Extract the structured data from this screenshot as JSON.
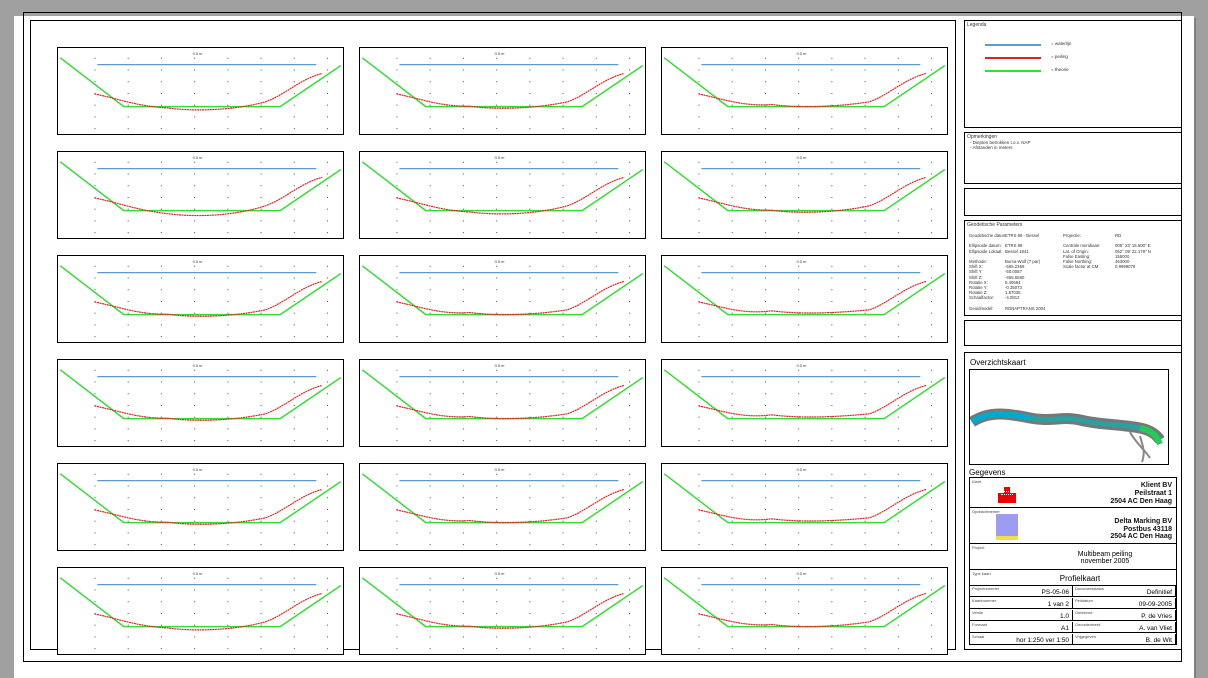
{
  "panels": [
    {
      "label": "0.0 m",
      "dip": 0.72
    },
    {
      "label": "0.0 m",
      "dip": 0.7
    },
    {
      "label": "0.0 m",
      "dip": 0.68
    },
    {
      "label": "0.0 m",
      "dip": 0.74
    },
    {
      "label": "0.0 m",
      "dip": 0.72
    },
    {
      "label": "0.0 m",
      "dip": 0.7
    },
    {
      "label": "0.0 m",
      "dip": 0.7
    },
    {
      "label": "0.0 m",
      "dip": 0.68
    },
    {
      "label": "0.0 m",
      "dip": 0.66
    },
    {
      "label": "0.0 m",
      "dip": 0.7
    },
    {
      "label": "0.0 m",
      "dip": 0.68
    },
    {
      "label": "0.0 m",
      "dip": 0.66
    },
    {
      "label": "0.0 m",
      "dip": 0.7
    },
    {
      "label": "0.0 m",
      "dip": 0.68
    },
    {
      "label": "0.0 m",
      "dip": 0.66
    },
    {
      "label": "0.0 m",
      "dip": 0.72
    },
    {
      "label": "0.0 m",
      "dip": 0.7
    },
    {
      "label": "0.0 m",
      "dip": 0.68
    }
  ],
  "legend": {
    "title": "Legenda",
    "items": [
      {
        "label": "= waterlijn",
        "color": "#5b9bd5"
      },
      {
        "label": "= peiling",
        "color": "#e32020"
      },
      {
        "label": "= theorie",
        "color": "#33dd33"
      }
    ]
  },
  "opmerkingen": {
    "title": "Opmerkingen",
    "lines": [
      "- Diepten betrokken t.o.v. NAP",
      "- Afstanden in meters"
    ]
  },
  "geodesie": {
    "title": "Geodetische Parameters",
    "rows": [
      [
        "Geodetische datum:",
        "ETRS 89 - Bessel",
        "Projectie:",
        "RD"
      ],
      [
        "",
        "",
        "",
        ""
      ],
      [
        "Ellipsoide datum:",
        "ETRS 89",
        "Centrale meridiaan:",
        "005° 23' 15.500\" E"
      ],
      [
        "Ellipsoide Lokaal:",
        "Bessel 1841",
        "Lat. of Origin:",
        "052° 09' 22.178\" N"
      ],
      [
        "",
        "",
        "False Easting:",
        "155000"
      ],
      [
        "Methode:",
        "Bursa-Wolf (7 par)",
        "False Northing:",
        "463000"
      ],
      [
        "Shift X:",
        "-565.2369",
        "Scale factor at CM:",
        "0.9999079"
      ],
      [
        "Shift Y:",
        "-50.0087",
        "",
        ""
      ],
      [
        "Shift Z:",
        "-465.6580",
        "",
        ""
      ],
      [
        "Rotatie X:",
        "0.40694",
        "",
        ""
      ],
      [
        "Rotatie Y:",
        "-0.35073",
        "",
        ""
      ],
      [
        "Rotatie Z:",
        "1.87035",
        "",
        ""
      ],
      [
        "Schaalfactor:",
        "-4.0812",
        "",
        ""
      ],
      [
        "",
        "",
        "",
        ""
      ],
      [
        "Geoidmodel:",
        "RDNAPTRANS 2004",
        "",
        ""
      ]
    ]
  },
  "overzicht": {
    "title": "Overzichtskaart"
  },
  "gegevens": {
    "title": "Gegevens",
    "client_lbl": "Klant",
    "client": [
      "Klient BV",
      "Peilstraat 1",
      "2504 AC Den Haag"
    ],
    "contractor_lbl": "Opdrachtnemer",
    "contractor": [
      "Delta Marking BV",
      "Postbus 43118",
      "2504 AC Den Haag"
    ],
    "project_lbl": "Project",
    "project": [
      "Multibeam peiling",
      "november 2005"
    ],
    "type_lbl": "Type kaart",
    "type": "Profielkaart",
    "cells": [
      {
        "lbl": "Projectnummer",
        "val": "PS-05-06"
      },
      {
        "lbl": "Documentstatus",
        "val": "Definitief"
      },
      {
        "lbl": "Kaartnummer",
        "val": "1 van 2"
      },
      {
        "lbl": "Peildatum",
        "val": "09-09-2005"
      },
      {
        "lbl": "Versie",
        "val": "1.0"
      },
      {
        "lbl": "Getekend",
        "val": "P. de Vries"
      },
      {
        "lbl": "Formaat",
        "val": "A1"
      },
      {
        "lbl": "Gecontroleerd",
        "val": "A. van Vliet"
      },
      {
        "lbl": "Schaal",
        "val": "hor 1:250 ver 1:50"
      },
      {
        "lbl": "Vrijgegeven",
        "val": "B. de Wit"
      }
    ]
  }
}
